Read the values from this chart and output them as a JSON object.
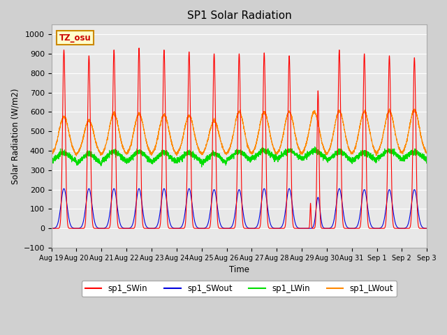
{
  "title": "SP1 Solar Radiation",
  "ylabel": "Solar Radiation (W/m2)",
  "xlabel": "Time",
  "ylim": [
    -100,
    1050
  ],
  "yticks": [
    -100,
    0,
    100,
    200,
    300,
    400,
    500,
    600,
    700,
    800,
    900,
    1000
  ],
  "tz_label": "TZ_osu",
  "colors": {
    "sp1_SWin": "#ff0000",
    "sp1_SWout": "#0000dd",
    "sp1_LWin": "#00dd00",
    "sp1_LWout": "#ff8800"
  },
  "fig_facecolor": "#d0d0d0",
  "ax_facecolor": "#e8e8e8",
  "x_tick_labels": [
    "Aug 19",
    "Aug 20",
    "Aug 21",
    "Aug 22",
    "Aug 23",
    "Aug 24",
    "Aug 25",
    "Aug 26",
    "Aug 27",
    "Aug 28",
    "Aug 29",
    "Aug 30",
    "Aug 31",
    "Sep 1",
    "Sep 2",
    "Sep 3"
  ],
  "num_days": 15,
  "sw_peaks": [
    920,
    890,
    920,
    930,
    920,
    910,
    900,
    900,
    905,
    890,
    710,
    920,
    900,
    890,
    880
  ],
  "sw_out_peaks": [
    205,
    205,
    205,
    205,
    205,
    205,
    200,
    200,
    205,
    205,
    160,
    205,
    200,
    200,
    200
  ],
  "lw_out_peaks": [
    575,
    555,
    590,
    590,
    585,
    580,
    555,
    600,
    600,
    600,
    600,
    605,
    600,
    605,
    610
  ],
  "lw_out_base": [
    375,
    375,
    375,
    375,
    375,
    375,
    375,
    375,
    375,
    375,
    375,
    375,
    375,
    380,
    380
  ],
  "lw_in_base": [
    340,
    325,
    340,
    340,
    335,
    340,
    330,
    345,
    355,
    355,
    355,
    345,
    345,
    355,
    350
  ],
  "lw_in_peaks": [
    390,
    385,
    395,
    395,
    390,
    390,
    385,
    395,
    400,
    400,
    400,
    395,
    390,
    400,
    395
  ]
}
